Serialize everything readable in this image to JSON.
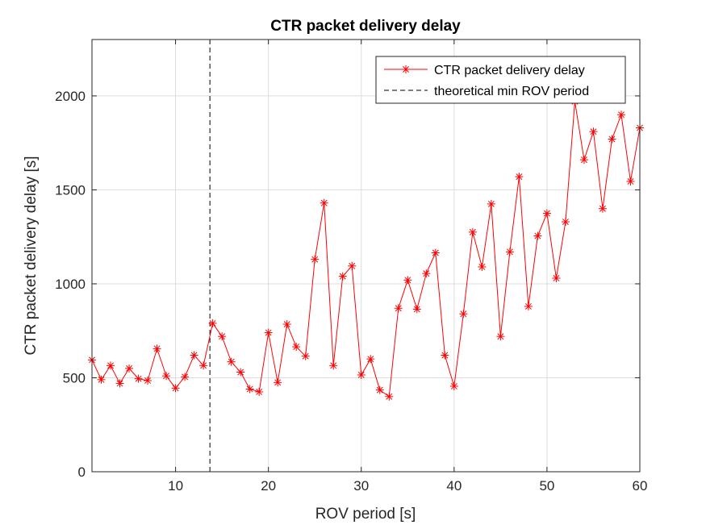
{
  "chart_data": {
    "type": "line",
    "title": "CTR packet delivery delay",
    "xlabel": "ROV period [s]",
    "ylabel": "CTR packet delivery delay [s]",
    "xlim": [
      1,
      60
    ],
    "ylim": [
      0,
      2300
    ],
    "xticks": [
      10,
      20,
      30,
      40,
      50,
      60
    ],
    "yticks": [
      0,
      500,
      1000,
      1500,
      2000
    ],
    "grid": true,
    "legend_position": "top-right",
    "series": [
      {
        "name": "CTR packet delivery delay",
        "color": "#ff0000",
        "marker": "asterisk",
        "x": [
          1,
          2,
          3,
          4,
          5,
          6,
          7,
          8,
          9,
          10,
          11,
          12,
          13,
          14,
          15,
          16,
          17,
          18,
          19,
          20,
          21,
          22,
          23,
          24,
          25,
          26,
          27,
          28,
          29,
          30,
          31,
          32,
          33,
          34,
          35,
          36,
          37,
          38,
          39,
          40,
          41,
          42,
          43,
          44,
          45,
          46,
          47,
          48,
          49,
          50,
          51,
          52,
          53,
          54,
          55,
          56,
          57,
          58,
          59,
          60
        ],
        "y": [
          595,
          490,
          565,
          470,
          550,
          495,
          485,
          655,
          510,
          445,
          505,
          620,
          565,
          790,
          720,
          585,
          530,
          440,
          425,
          740,
          475,
          785,
          665,
          615,
          1130,
          1430,
          565,
          1040,
          1095,
          515,
          600,
          435,
          400,
          870,
          1020,
          865,
          1055,
          1165,
          620,
          455,
          840,
          1275,
          1090,
          1425,
          720,
          1170,
          1570,
          880,
          1255,
          1375,
          1030,
          1330,
          1970,
          1660,
          1810,
          1400,
          1770,
          1900,
          1545,
          1830
        ]
      }
    ],
    "reference_lines": [
      {
        "name": "theoretical min ROV period",
        "orientation": "vertical",
        "x": 13.7,
        "color": "#000000",
        "style": "dashed"
      }
    ]
  }
}
